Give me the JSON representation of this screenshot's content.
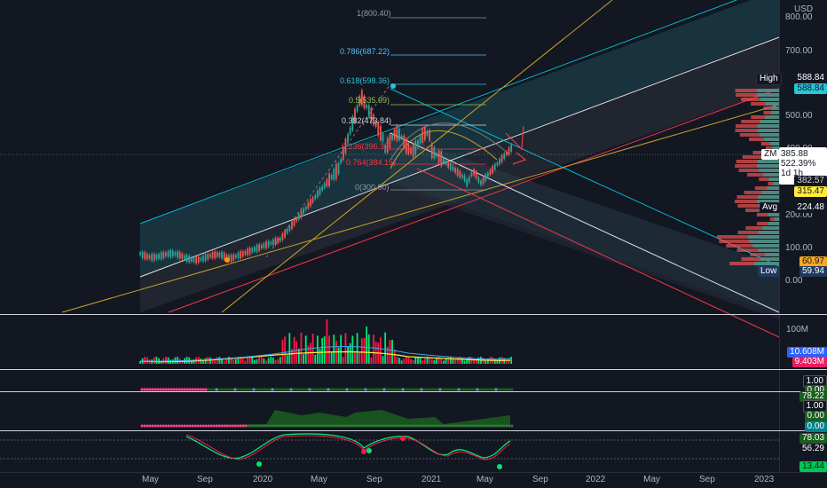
{
  "currency": "USD",
  "symbol": "ZM",
  "price_axis_ticks": [
    "800.00",
    "700.00",
    "500.00",
    "400.00",
    "200.00",
    "100.00",
    "0.00"
  ],
  "price_badges": {
    "high_label": "High",
    "high_value": "588.84",
    "high_value2": "588.84",
    "last_price": "385.88",
    "change_pct": "522.39%",
    "time_left": "1d 1h",
    "level_1": "382.57",
    "level_2": "315.47",
    "avg_label": "Avg",
    "avg_value": "224.48",
    "level_3": "60.97",
    "low_label": "Low",
    "low_value": "59.94"
  },
  "fib_levels": [
    {
      "text": "1(800.40)",
      "color": "#9598a1"
    },
    {
      "text": "0.786(687.22)",
      "color": "#4fc3f7"
    },
    {
      "text": "0.618(598.36)",
      "color": "#26c6da"
    },
    {
      "text": "0.5(535.99)",
      "color": "#8bc34a"
    },
    {
      "text": "0.382(473.84)",
      "color": "#d1d4dc"
    },
    {
      "text": "0.236(396.32)",
      "color": "#f23645"
    },
    {
      "text": "0.764(384.15)",
      "color": "#f23645"
    },
    {
      "text": "0(300.00)",
      "color": "#9598a1"
    }
  ],
  "volume_badges": {
    "top_tick": "100M",
    "v1": "10.608M",
    "v2": "9.403M"
  },
  "indicator_badges": {
    "p2_a": "1.00",
    "p2_b": "0.00",
    "p2_c": "78.22",
    "p3_a": "1.00",
    "p3_b": "0.00",
    "p3_c": "0.00",
    "p4_a": "78.03",
    "p4_b": "56.29",
    "p4_c": "13.44"
  },
  "time_axis": [
    "May",
    "Sep",
    "2020",
    "May",
    "Sep",
    "2021",
    "May",
    "Sep",
    "2022",
    "May",
    "Sep",
    "2023"
  ],
  "colors": {
    "up": "#26a69a",
    "down": "#ef5350",
    "bg": "#131722",
    "cyan": "#00bcd4",
    "crimson": "#e91e63",
    "gold": "#c9a227"
  }
}
